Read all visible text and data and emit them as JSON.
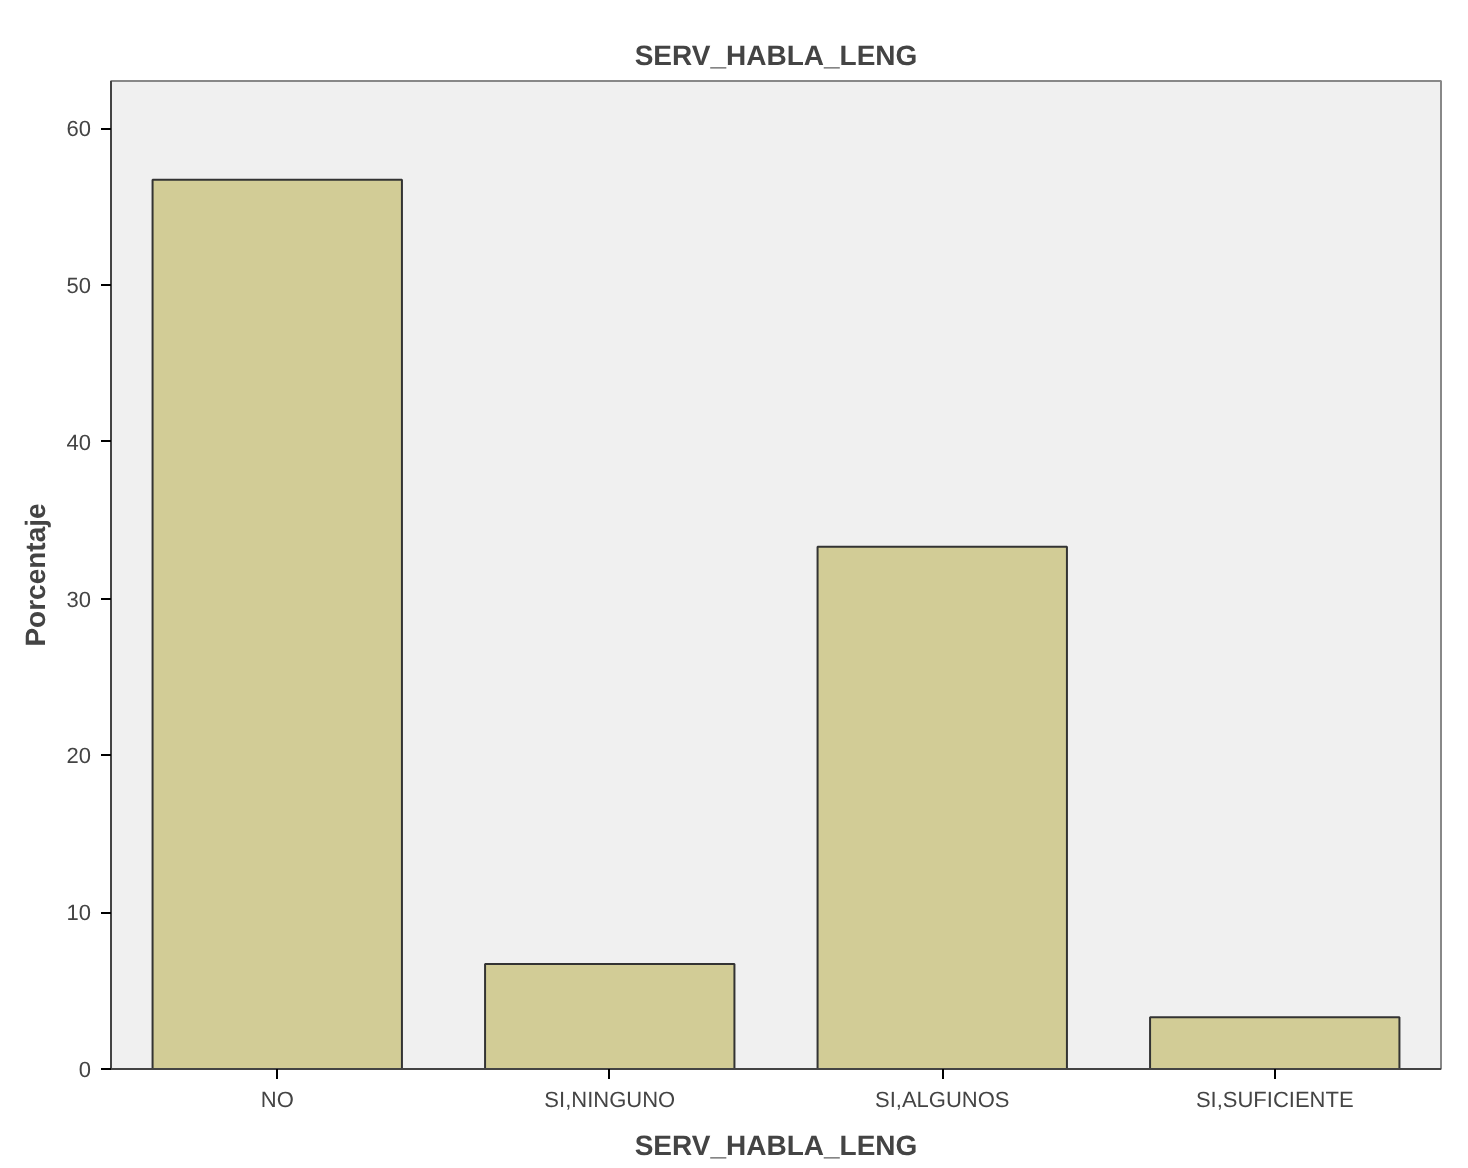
{
  "chart_data": {
    "type": "bar",
    "title": "SERV_HABLA_LENG",
    "xlabel": "SERV_HABLA_LENG",
    "ylabel": "Porcentaje",
    "categories": [
      "NO",
      "SI,NINGUNO",
      "SI,ALGUNOS",
      "SI,SUFICIENTE"
    ],
    "values": [
      56.7,
      6.7,
      33.3,
      3.3
    ],
    "color": "#d2cc96",
    "ylim": [
      0,
      63
    ],
    "yticks": [
      0,
      10,
      20,
      30,
      40,
      50,
      60
    ],
    "grid": false
  }
}
